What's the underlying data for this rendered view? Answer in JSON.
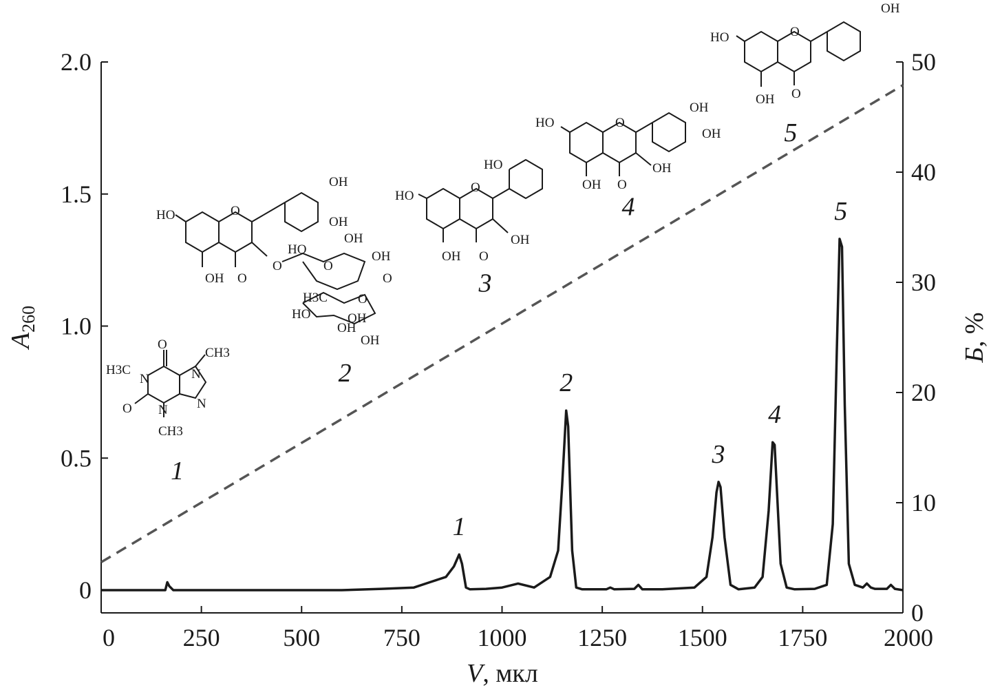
{
  "chart_data": {
    "type": "line",
    "xlabel_symbol": "V",
    "xlabel_unit": ", мкл",
    "ylabel_symbol": "A",
    "ylabel_sub": "260",
    "y2label_symbol": "Б",
    "y2label_unit": ", %",
    "xlim": [
      0,
      2000
    ],
    "ylim": [
      0,
      2.0
    ],
    "y2lim": [
      0,
      50
    ],
    "x_ticks": [
      0,
      250,
      500,
      750,
      1000,
      1250,
      1500,
      1750,
      2000
    ],
    "x_tick_labels": [
      "0",
      "250",
      "500",
      "750",
      "1000",
      "1250",
      "1500",
      "1750",
      "2000"
    ],
    "y_ticks": [
      0,
      0.5,
      1.0,
      1.5,
      2.0
    ],
    "y_tick_labels": [
      "0",
      "0.5",
      "1.0",
      "1.5",
      "2.0"
    ],
    "y2_ticks": [
      0,
      10,
      20,
      30,
      40,
      50
    ],
    "y2_tick_labels": [
      "0",
      "10",
      "20",
      "30",
      "40",
      "50"
    ],
    "series": [
      {
        "axis": "left",
        "style": "solid",
        "color": "#1a1a1a",
        "x": [
          0,
          160,
          165,
          170,
          180,
          600,
          700,
          780,
          820,
          860,
          880,
          893,
          900,
          910,
          920,
          960,
          1000,
          1040,
          1080,
          1120,
          1140,
          1150,
          1160,
          1165,
          1175,
          1185,
          1200,
          1260,
          1270,
          1280,
          1330,
          1340,
          1350,
          1400,
          1480,
          1510,
          1525,
          1535,
          1540,
          1545,
          1555,
          1570,
          1590,
          1630,
          1650,
          1665,
          1675,
          1680,
          1685,
          1695,
          1710,
          1730,
          1780,
          1810,
          1825,
          1835,
          1842,
          1848,
          1855,
          1865,
          1880,
          1900,
          1910,
          1920,
          1930,
          1960,
          1970,
          1980,
          2000
        ],
        "y": [
          0.0,
          0.0,
          0.03,
          0.015,
          0.0,
          0.0,
          0.005,
          0.01,
          0.03,
          0.05,
          0.09,
          0.135,
          0.1,
          0.01,
          0.003,
          0.005,
          0.01,
          0.025,
          0.01,
          0.05,
          0.15,
          0.4,
          0.68,
          0.62,
          0.15,
          0.01,
          0.003,
          0.003,
          0.01,
          0.003,
          0.005,
          0.02,
          0.003,
          0.003,
          0.01,
          0.05,
          0.2,
          0.37,
          0.41,
          0.39,
          0.2,
          0.02,
          0.003,
          0.01,
          0.05,
          0.3,
          0.56,
          0.55,
          0.4,
          0.1,
          0.01,
          0.003,
          0.005,
          0.02,
          0.25,
          0.9,
          1.33,
          1.3,
          0.7,
          0.1,
          0.02,
          0.01,
          0.025,
          0.01,
          0.005,
          0.005,
          0.02,
          0.005,
          0.0
        ]
      },
      {
        "axis": "right",
        "style": "dashed",
        "color": "#555555",
        "x": [
          0,
          2000
        ],
        "y": [
          4.6,
          47.9
        ]
      }
    ],
    "peak_labels": [
      {
        "text": "1",
        "x": 893,
        "y": 0.135
      },
      {
        "text": "2",
        "x": 1160,
        "y": 0.68
      },
      {
        "text": "3",
        "x": 1540,
        "y": 0.41
      },
      {
        "text": "4",
        "x": 1680,
        "y": 0.56
      },
      {
        "text": "5",
        "x": 1845,
        "y": 1.33
      }
    ],
    "structure_numbers": [
      {
        "text": "1",
        "x": 190,
        "y": 0.42
      },
      {
        "text": "2",
        "x": 608,
        "y": 0.79
      },
      {
        "text": "3",
        "x": 958,
        "y": 1.13
      },
      {
        "text": "4",
        "x": 1315,
        "y": 1.42
      },
      {
        "text": "5",
        "x": 1720,
        "y": 1.7
      }
    ]
  },
  "structures": {
    "s1": {
      "h3c_left": "H3C",
      "ch3_top": "CH3",
      "ch3_bottom": "CH3",
      "o_top": "O",
      "o_left": "O",
      "n1": "N",
      "n2": "N",
      "n3": "N",
      "n4": "N"
    },
    "s2": {
      "ho_left": "HO",
      "oh_top": "OH",
      "oh_right": "OH",
      "oh_bottom": "OH",
      "o_ring": "O",
      "o_keto": "O",
      "o_link": "O",
      "sugar_ho1": "HO",
      "sugar_oh1": "OH",
      "sugar_oh2": "OH",
      "sugar_o1": "O",
      "sugar_o2": "O",
      "h3c": "H3C",
      "sugar_o3": "O",
      "rha_ho": "HO",
      "rha_oh1": "OH",
      "rha_oh2": "OH",
      "rha_oh3": "OH"
    },
    "s3": {
      "ho_top": "HO",
      "ho_left": "HO",
      "o_ring": "O",
      "oh_right": "OH",
      "oh_bottom": "OH",
      "o_keto": "O"
    },
    "s4": {
      "ho_left": "HO",
      "o_ring": "O",
      "oh_top": "OH",
      "oh_right": "OH",
      "oh_mid": "OH",
      "oh_bottom": "OH",
      "o_keto": "O"
    },
    "s5": {
      "ho_left": "HO",
      "o_ring": "O",
      "oh_top": "OH",
      "oh_bottom": "OH",
      "o_keto": "O"
    }
  }
}
